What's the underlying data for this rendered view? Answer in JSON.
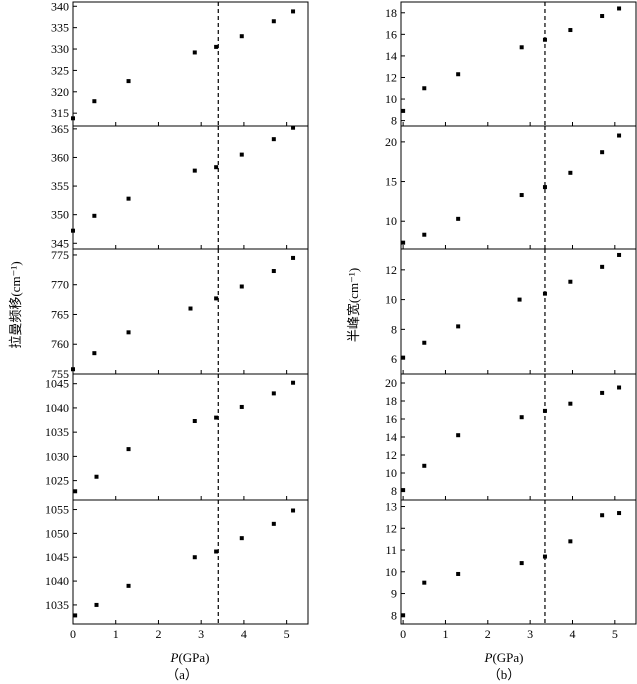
{
  "figure": {
    "left_ylabel": "拉曼频移(cm⁻¹)",
    "right_ylabel": "半峰宽(cm⁻¹)",
    "left_xlabel_italic": "P",
    "left_xlabel_rest": "(GPa)",
    "right_xlabel_italic": "P",
    "right_xlabel_rest": "(GPa)",
    "left_caption": "（a）",
    "right_caption": "（b）"
  },
  "chart_data": [
    {
      "type": "scatter",
      "panel": "a",
      "row": 1,
      "x": [
        0.0,
        0.5,
        1.3,
        2.85,
        3.35,
        3.95,
        4.7,
        5.15
      ],
      "y": [
        313.8,
        317.8,
        322.5,
        329.2,
        330.5,
        333.0,
        336.5,
        338.8
      ],
      "ylim": [
        312,
        341
      ],
      "yticks": [
        315,
        320,
        325,
        330,
        335,
        340
      ],
      "xlim": [
        0,
        5.5
      ],
      "xticks": [
        0,
        1,
        2,
        3,
        4,
        5
      ],
      "dashed_x": 3.4
    },
    {
      "type": "scatter",
      "panel": "a",
      "row": 2,
      "x": [
        0.0,
        0.5,
        1.3,
        2.85,
        3.35,
        3.95,
        4.7,
        5.15
      ],
      "y": [
        347.2,
        349.8,
        352.8,
        357.7,
        358.3,
        360.5,
        363.2,
        365.2
      ],
      "ylim": [
        344,
        365.5
      ],
      "yticks": [
        345,
        350,
        355,
        360,
        365
      ],
      "xlim": [
        0,
        5.5
      ],
      "xticks": [
        0,
        1,
        2,
        3,
        4,
        5
      ],
      "dashed_x": 3.4
    },
    {
      "type": "scatter",
      "panel": "a",
      "row": 3,
      "x": [
        0.0,
        0.5,
        1.3,
        2.75,
        3.35,
        3.95,
        4.7,
        5.15
      ],
      "y": [
        755.8,
        758.5,
        762.0,
        766.0,
        767.7,
        769.7,
        772.3,
        774.5
      ],
      "ylim": [
        755,
        776
      ],
      "yticks": [
        755,
        760,
        765,
        770,
        775
      ],
      "xlim": [
        0,
        5.5
      ],
      "xticks": [
        0,
        1,
        2,
        3,
        4,
        5
      ],
      "dashed_x": 3.4
    },
    {
      "type": "scatter",
      "panel": "a",
      "row": 4,
      "x": [
        0.05,
        0.55,
        1.3,
        2.85,
        3.35,
        3.95,
        4.7,
        5.15
      ],
      "y": [
        1022.8,
        1025.8,
        1031.5,
        1037.3,
        1038.0,
        1040.2,
        1043.0,
        1045.2
      ],
      "ylim": [
        1021,
        1047
      ],
      "yticks": [
        1025,
        1030,
        1035,
        1040,
        1045
      ],
      "xlim": [
        0,
        5.5
      ],
      "xticks": [
        0,
        1,
        2,
        3,
        4,
        5
      ],
      "dashed_x": 3.4
    },
    {
      "type": "scatter",
      "panel": "a",
      "row": 5,
      "x": [
        0.05,
        0.55,
        1.3,
        2.85,
        3.35,
        3.95,
        4.7,
        5.15
      ],
      "y": [
        1032.8,
        1035.0,
        1039.0,
        1045.0,
        1046.2,
        1049.0,
        1052.0,
        1054.8
      ],
      "ylim": [
        1031,
        1057
      ],
      "yticks": [
        1035,
        1040,
        1045,
        1050,
        1055
      ],
      "xlim": [
        0,
        5.5
      ],
      "xticks": [
        0,
        1,
        2,
        3,
        4,
        5
      ],
      "dashed_x": 3.4,
      "xlabel": "P(GPa)"
    },
    {
      "type": "scatter",
      "panel": "b",
      "row": 1,
      "x": [
        0.0,
        0.5,
        1.3,
        2.8,
        3.35,
        3.95,
        4.7,
        5.1
      ],
      "y": [
        8.9,
        11.0,
        12.3,
        14.8,
        15.5,
        16.4,
        17.7,
        18.4
      ],
      "ylim": [
        7.5,
        19
      ],
      "yticks": [
        8,
        10,
        12,
        14,
        16,
        18
      ],
      "xlim": [
        -0.05,
        5.5
      ],
      "xticks": [
        0,
        1,
        2,
        3,
        4,
        5
      ],
      "dashed_x": 3.35
    },
    {
      "type": "scatter",
      "panel": "b",
      "row": 2,
      "x": [
        0.0,
        0.5,
        1.3,
        2.8,
        3.35,
        3.95,
        4.7,
        5.1
      ],
      "y": [
        7.3,
        8.3,
        10.3,
        13.3,
        14.3,
        16.1,
        18.7,
        20.8
      ],
      "ylim": [
        6.5,
        22
      ],
      "yticks": [
        10,
        15,
        20
      ],
      "xlim": [
        -0.05,
        5.5
      ],
      "xticks": [
        0,
        1,
        2,
        3,
        4,
        5
      ],
      "dashed_x": 3.35
    },
    {
      "type": "scatter",
      "panel": "b",
      "row": 3,
      "x": [
        0.0,
        0.5,
        1.3,
        2.75,
        3.35,
        3.95,
        4.7,
        5.1
      ],
      "y": [
        6.1,
        7.1,
        8.2,
        10.0,
        10.4,
        11.2,
        12.2,
        13.0
      ],
      "ylim": [
        5.0,
        13.4
      ],
      "yticks": [
        6,
        8,
        10,
        12
      ],
      "xlim": [
        -0.05,
        5.5
      ],
      "xticks": [
        0,
        1,
        2,
        3,
        4,
        5
      ],
      "dashed_x": 3.35
    },
    {
      "type": "scatter",
      "panel": "b",
      "row": 4,
      "x": [
        0.0,
        0.5,
        1.3,
        2.8,
        3.35,
        3.95,
        4.7,
        5.1
      ],
      "y": [
        8.1,
        10.8,
        14.2,
        16.2,
        16.9,
        17.7,
        18.9,
        19.5
      ],
      "ylim": [
        7.0,
        21.0
      ],
      "yticks": [
        8,
        10,
        12,
        14,
        16,
        18,
        20
      ],
      "xlim": [
        -0.05,
        5.5
      ],
      "xticks": [
        0,
        1,
        2,
        3,
        4,
        5
      ],
      "dashed_x": 3.35
    },
    {
      "type": "scatter",
      "panel": "b",
      "row": 5,
      "x": [
        0.0,
        0.5,
        1.3,
        2.8,
        3.35,
        3.95,
        4.7,
        5.1
      ],
      "y": [
        8.0,
        9.5,
        9.9,
        10.4,
        10.7,
        11.4,
        12.6,
        12.7
      ],
      "ylim": [
        7.6,
        13.3
      ],
      "yticks": [
        8,
        9,
        10,
        11,
        12,
        13
      ],
      "xlim": [
        -0.05,
        5.5
      ],
      "xticks": [
        0,
        1,
        2,
        3,
        4,
        5
      ],
      "dashed_x": 3.35,
      "xlabel": "P(GPa)"
    }
  ]
}
